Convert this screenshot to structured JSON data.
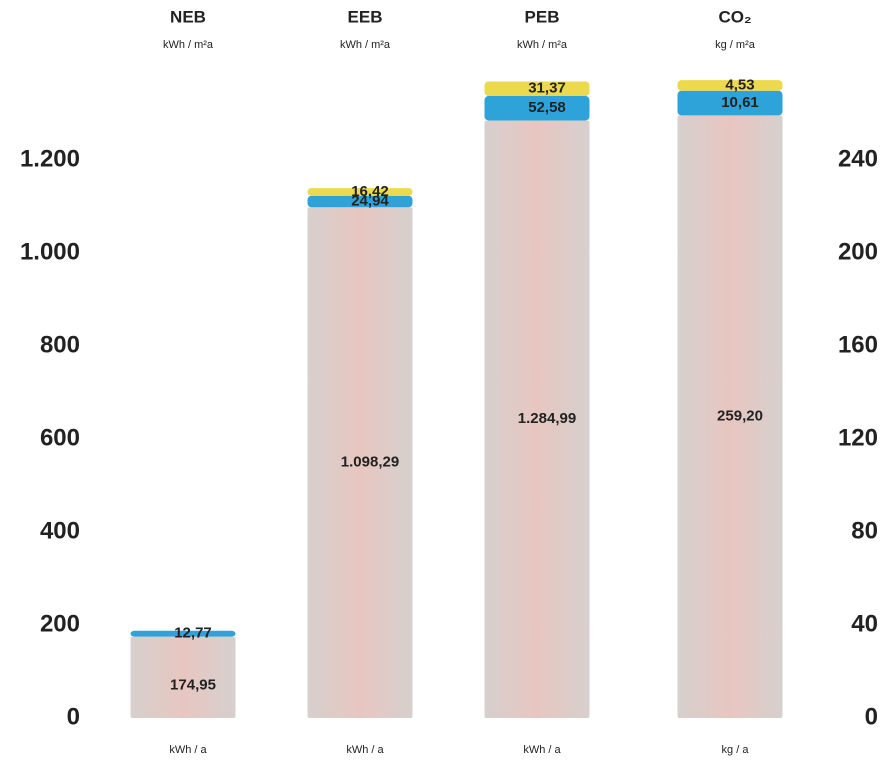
{
  "chart_data": {
    "type": "stacked_bar",
    "categories": [
      "NEB",
      "EEB",
      "PEB",
      "CO₂"
    ],
    "units": [
      "kWh / m²a",
      "kWh / m²a",
      "kWh / m²a",
      "kg / m²a"
    ],
    "footers": [
      "kWh / a",
      "kWh / a",
      "kWh / a",
      "kg / a"
    ],
    "ylim": [
      0,
      1200
    ],
    "yticks": [
      0,
      200,
      400,
      600,
      800,
      {
        "value": 1000,
        "label": "1.000"
      },
      {
        "value": 1200,
        "label": "1.200"
      }
    ],
    "y2lim": [
      0,
      240
    ],
    "y2ticks": [
      0,
      40,
      80,
      120,
      160,
      200,
      240
    ],
    "series": [
      {
        "color": "#dcc8c4",
        "values": [
          174.95,
          1098.29,
          1284.99,
          null
        ],
        "value_labels": [
          "174,95",
          "1.098,29",
          "1.284,99",
          null
        ]
      },
      {
        "color": "#2ea3d9",
        "values": [
          12.77,
          24.94,
          52.58,
          null
        ],
        "value_labels": [
          "12,77",
          "24,94",
          "52,58",
          null
        ]
      },
      {
        "color": "#ecd94e",
        "values": [
          null,
          16.42,
          31.37,
          null
        ],
        "value_labels": [
          null,
          "16,42",
          "31,37",
          null
        ]
      },
      {
        "color": "#dcc8c4",
        "axis": "y2",
        "values": [
          null,
          null,
          null,
          259.2
        ],
        "value_labels": [
          null,
          null,
          null,
          "259,20"
        ]
      },
      {
        "color": "#2ea3d9",
        "axis": "y2",
        "values": [
          null,
          null,
          null,
          10.61
        ],
        "value_labels": [
          null,
          null,
          null,
          "10,61"
        ]
      },
      {
        "color": "#ecd94e",
        "axis": "y2",
        "values": [
          null,
          null,
          null,
          4.53
        ],
        "value_labels": [
          null,
          null,
          null,
          "4,53"
        ]
      }
    ]
  }
}
